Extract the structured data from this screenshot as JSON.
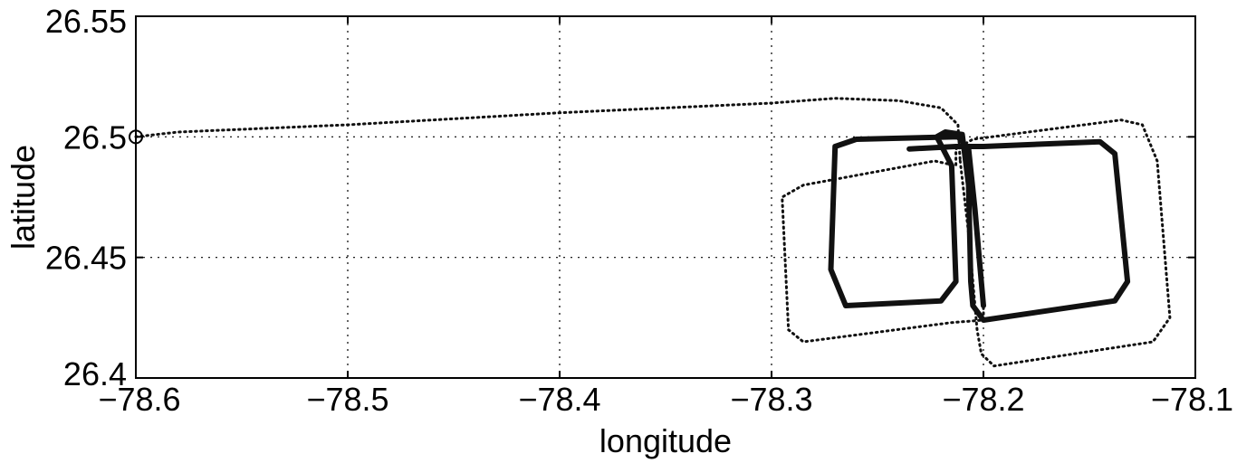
{
  "chart_data": {
    "type": "line",
    "title": "",
    "xlabel": "longitude",
    "ylabel": "latitude",
    "xlim": [
      -78.6,
      -78.1
    ],
    "ylim": [
      26.4,
      26.55
    ],
    "xticks": [
      -78.6,
      -78.5,
      -78.4,
      -78.3,
      -78.2,
      -78.1
    ],
    "xtick_labels": [
      "−78.6",
      "−78.5",
      "−78.4",
      "−78.3",
      "−78.2",
      "−78.1"
    ],
    "yticks": [
      26.4,
      26.45,
      26.5,
      26.55
    ],
    "ytick_labels": [
      "26.4",
      "26.45",
      "26.5",
      "26.55"
    ],
    "grid": true,
    "start_marker": {
      "x": -78.6,
      "y": 26.5
    },
    "series": [
      {
        "style": "dotted",
        "points": [
          [
            -78.6,
            26.5
          ],
          [
            -78.58,
            26.502
          ],
          [
            -78.5,
            26.505
          ],
          [
            -78.4,
            26.51
          ],
          [
            -78.3,
            26.514
          ],
          [
            -78.27,
            26.516
          ],
          [
            -78.24,
            26.515
          ],
          [
            -78.22,
            26.512
          ],
          [
            -78.212,
            26.505
          ],
          [
            -78.211,
            26.49
          ]
        ]
      },
      {
        "style": "dotted",
        "points": [
          [
            -78.211,
            26.49
          ],
          [
            -78.207,
            26.46
          ],
          [
            -78.203,
            26.42
          ],
          [
            -78.201,
            26.41
          ],
          [
            -78.195,
            26.405
          ],
          [
            -78.12,
            26.415
          ],
          [
            -78.112,
            26.425
          ],
          [
            -78.118,
            26.49
          ],
          [
            -78.125,
            26.505
          ],
          [
            -78.135,
            26.507
          ],
          [
            -78.205,
            26.499
          ],
          [
            -78.213,
            26.495
          ],
          [
            -78.213,
            26.488
          ],
          [
            -78.223,
            26.49
          ],
          [
            -78.285,
            26.48
          ],
          [
            -78.295,
            26.475
          ],
          [
            -78.292,
            26.42
          ],
          [
            -78.285,
            26.415
          ],
          [
            -78.215,
            26.423
          ],
          [
            -78.2,
            26.424
          ],
          [
            -78.2,
            26.43
          ]
        ]
      },
      {
        "style": "solid",
        "points": [
          [
            -78.2,
            26.43
          ],
          [
            -78.204,
            26.47
          ],
          [
            -78.207,
            26.495
          ],
          [
            -78.212,
            26.5
          ],
          [
            -78.26,
            26.499
          ],
          [
            -78.27,
            26.496
          ],
          [
            -78.272,
            26.445
          ],
          [
            -78.265,
            26.43
          ],
          [
            -78.22,
            26.432
          ],
          [
            -78.213,
            26.44
          ],
          [
            -78.215,
            26.488
          ],
          [
            -78.222,
            26.5
          ],
          [
            -78.218,
            26.502
          ],
          [
            -78.21,
            26.501
          ],
          [
            -78.207,
            26.48
          ],
          [
            -78.206,
            26.44
          ],
          [
            -78.205,
            26.43
          ],
          [
            -78.2,
            26.424
          ],
          [
            -78.138,
            26.432
          ],
          [
            -78.132,
            26.44
          ],
          [
            -78.138,
            26.493
          ],
          [
            -78.145,
            26.498
          ],
          [
            -78.2,
            26.496
          ],
          [
            -78.213,
            26.496
          ],
          [
            -78.235,
            26.495
          ]
        ]
      }
    ]
  }
}
